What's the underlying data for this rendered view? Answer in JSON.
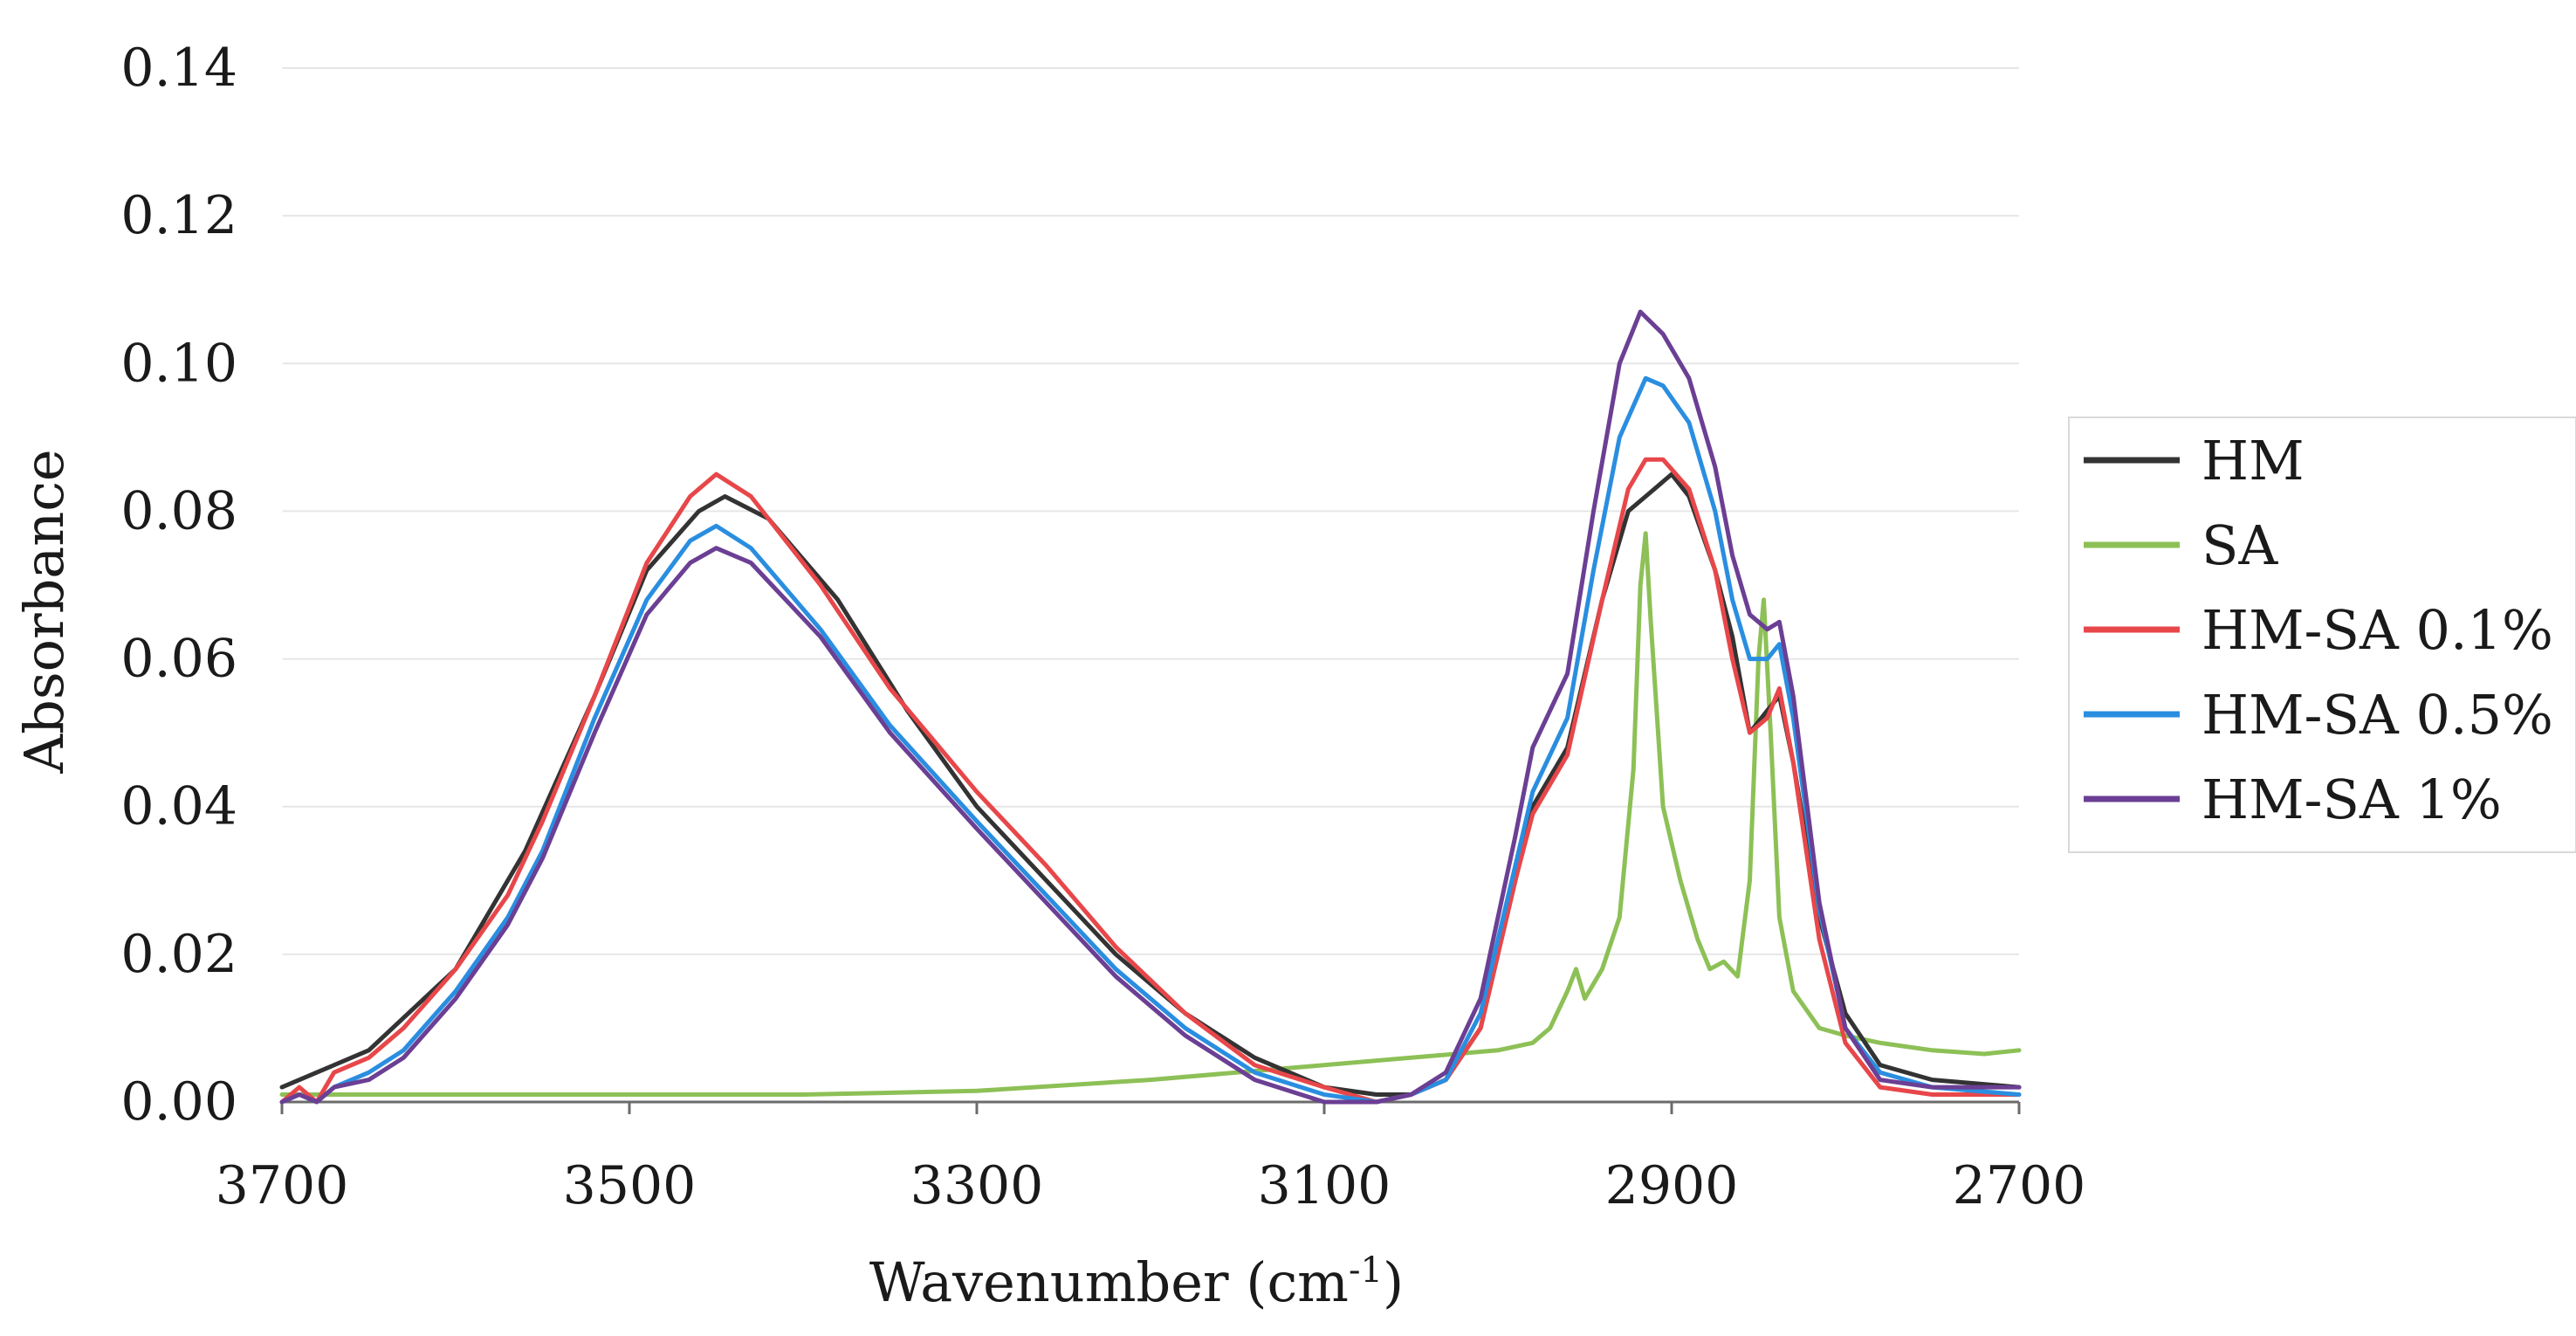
{
  "chart_data": {
    "type": "line",
    "title": "",
    "xlabel": "Wavenumber (cm",
    "xlabel_sup": "-1",
    "xlabel_close": ")",
    "ylabel": "Absorbance",
    "xlim": [
      3700,
      2700
    ],
    "ylim": [
      0,
      0.14
    ],
    "x_ticks": [
      3700,
      3500,
      3300,
      3100,
      2900,
      2700
    ],
    "y_ticks": [
      0.0,
      0.02,
      0.04,
      0.06,
      0.08,
      0.1,
      0.12,
      0.14
    ],
    "y_tick_labels": [
      "0.00",
      "0.02",
      "0.04",
      "0.06",
      "0.08",
      "0.10",
      "0.12",
      "0.14"
    ],
    "grid": true,
    "legend_position": "right",
    "series": [
      {
        "name": "HM",
        "color": "#333333",
        "points": [
          [
            3700,
            0.002
          ],
          [
            3680,
            0.004
          ],
          [
            3650,
            0.007
          ],
          [
            3600,
            0.018
          ],
          [
            3560,
            0.034
          ],
          [
            3520,
            0.055
          ],
          [
            3490,
            0.072
          ],
          [
            3460,
            0.08
          ],
          [
            3445,
            0.082
          ],
          [
            3420,
            0.079
          ],
          [
            3380,
            0.068
          ],
          [
            3340,
            0.053
          ],
          [
            3300,
            0.04
          ],
          [
            3260,
            0.03
          ],
          [
            3220,
            0.02
          ],
          [
            3180,
            0.012
          ],
          [
            3140,
            0.006
          ],
          [
            3100,
            0.002
          ],
          [
            3070,
            0.001
          ],
          [
            3050,
            0.001
          ],
          [
            3030,
            0.003
          ],
          [
            3010,
            0.01
          ],
          [
            2990,
            0.03
          ],
          [
            2980,
            0.04
          ],
          [
            2960,
            0.048
          ],
          [
            2940,
            0.068
          ],
          [
            2925,
            0.08
          ],
          [
            2910,
            0.083
          ],
          [
            2900,
            0.085
          ],
          [
            2890,
            0.082
          ],
          [
            2875,
            0.072
          ],
          [
            2865,
            0.063
          ],
          [
            2855,
            0.05
          ],
          [
            2845,
            0.053
          ],
          [
            2838,
            0.055
          ],
          [
            2830,
            0.046
          ],
          [
            2815,
            0.025
          ],
          [
            2800,
            0.012
          ],
          [
            2780,
            0.005
          ],
          [
            2750,
            0.003
          ],
          [
            2700,
            0.002
          ]
        ]
      },
      {
        "name": "SA",
        "color": "#8dc056",
        "points": [
          [
            3700,
            0.001
          ],
          [
            3600,
            0.001
          ],
          [
            3500,
            0.001
          ],
          [
            3400,
            0.001
          ],
          [
            3300,
            0.0015
          ],
          [
            3200,
            0.003
          ],
          [
            3100,
            0.005
          ],
          [
            3050,
            0.006
          ],
          [
            3000,
            0.007
          ],
          [
            2980,
            0.008
          ],
          [
            2970,
            0.01
          ],
          [
            2960,
            0.015
          ],
          [
            2955,
            0.018
          ],
          [
            2950,
            0.014
          ],
          [
            2940,
            0.018
          ],
          [
            2930,
            0.025
          ],
          [
            2922,
            0.045
          ],
          [
            2918,
            0.07
          ],
          [
            2915,
            0.077
          ],
          [
            2912,
            0.065
          ],
          [
            2905,
            0.04
          ],
          [
            2895,
            0.03
          ],
          [
            2885,
            0.022
          ],
          [
            2878,
            0.018
          ],
          [
            2870,
            0.019
          ],
          [
            2862,
            0.017
          ],
          [
            2855,
            0.03
          ],
          [
            2850,
            0.06
          ],
          [
            2847,
            0.068
          ],
          [
            2843,
            0.05
          ],
          [
            2838,
            0.025
          ],
          [
            2830,
            0.015
          ],
          [
            2815,
            0.01
          ],
          [
            2800,
            0.009
          ],
          [
            2780,
            0.008
          ],
          [
            2750,
            0.007
          ],
          [
            2720,
            0.0065
          ],
          [
            2700,
            0.007
          ]
        ]
      },
      {
        "name": "HM-SA 0.1%",
        "color": "#e8474a",
        "points": [
          [
            3700,
            0.0
          ],
          [
            3690,
            0.002
          ],
          [
            3680,
            0.0
          ],
          [
            3670,
            0.004
          ],
          [
            3650,
            0.006
          ],
          [
            3630,
            0.01
          ],
          [
            3600,
            0.018
          ],
          [
            3570,
            0.028
          ],
          [
            3550,
            0.038
          ],
          [
            3520,
            0.055
          ],
          [
            3490,
            0.073
          ],
          [
            3465,
            0.082
          ],
          [
            3450,
            0.085
          ],
          [
            3430,
            0.082
          ],
          [
            3390,
            0.07
          ],
          [
            3350,
            0.056
          ],
          [
            3300,
            0.042
          ],
          [
            3260,
            0.032
          ],
          [
            3220,
            0.021
          ],
          [
            3180,
            0.012
          ],
          [
            3140,
            0.005
          ],
          [
            3100,
            0.002
          ],
          [
            3070,
            0.0
          ],
          [
            3050,
            0.001
          ],
          [
            3030,
            0.003
          ],
          [
            3010,
            0.01
          ],
          [
            2990,
            0.03
          ],
          [
            2980,
            0.039
          ],
          [
            2960,
            0.047
          ],
          [
            2940,
            0.068
          ],
          [
            2925,
            0.083
          ],
          [
            2915,
            0.087
          ],
          [
            2905,
            0.087
          ],
          [
            2890,
            0.083
          ],
          [
            2875,
            0.072
          ],
          [
            2865,
            0.06
          ],
          [
            2855,
            0.05
          ],
          [
            2845,
            0.052
          ],
          [
            2838,
            0.056
          ],
          [
            2830,
            0.046
          ],
          [
            2815,
            0.022
          ],
          [
            2800,
            0.008
          ],
          [
            2780,
            0.002
          ],
          [
            2750,
            0.001
          ],
          [
            2700,
            0.001
          ]
        ]
      },
      {
        "name": "HM-SA 0.5%",
        "color": "#2a8ee0",
        "points": [
          [
            3700,
            0.0
          ],
          [
            3690,
            0.001
          ],
          [
            3680,
            0.0
          ],
          [
            3670,
            0.002
          ],
          [
            3650,
            0.004
          ],
          [
            3630,
            0.007
          ],
          [
            3600,
            0.015
          ],
          [
            3570,
            0.025
          ],
          [
            3550,
            0.034
          ],
          [
            3520,
            0.052
          ],
          [
            3490,
            0.068
          ],
          [
            3465,
            0.076
          ],
          [
            3450,
            0.078
          ],
          [
            3430,
            0.075
          ],
          [
            3390,
            0.064
          ],
          [
            3350,
            0.051
          ],
          [
            3300,
            0.038
          ],
          [
            3260,
            0.028
          ],
          [
            3220,
            0.018
          ],
          [
            3180,
            0.01
          ],
          [
            3140,
            0.004
          ],
          [
            3100,
            0.001
          ],
          [
            3070,
            0.0
          ],
          [
            3050,
            0.001
          ],
          [
            3030,
            0.003
          ],
          [
            3010,
            0.012
          ],
          [
            2990,
            0.032
          ],
          [
            2980,
            0.042
          ],
          [
            2960,
            0.052
          ],
          [
            2945,
            0.072
          ],
          [
            2930,
            0.09
          ],
          [
            2915,
            0.098
          ],
          [
            2905,
            0.097
          ],
          [
            2890,
            0.092
          ],
          [
            2875,
            0.08
          ],
          [
            2865,
            0.068
          ],
          [
            2855,
            0.06
          ],
          [
            2845,
            0.06
          ],
          [
            2838,
            0.062
          ],
          [
            2830,
            0.052
          ],
          [
            2815,
            0.026
          ],
          [
            2800,
            0.01
          ],
          [
            2780,
            0.004
          ],
          [
            2750,
            0.002
          ],
          [
            2700,
            0.001
          ]
        ]
      },
      {
        "name": "HM-SA 1%",
        "color": "#6b3f94",
        "points": [
          [
            3700,
            0.0
          ],
          [
            3690,
            0.001
          ],
          [
            3680,
            0.0
          ],
          [
            3670,
            0.002
          ],
          [
            3650,
            0.003
          ],
          [
            3630,
            0.006
          ],
          [
            3600,
            0.014
          ],
          [
            3570,
            0.024
          ],
          [
            3550,
            0.033
          ],
          [
            3520,
            0.05
          ],
          [
            3490,
            0.066
          ],
          [
            3465,
            0.073
          ],
          [
            3450,
            0.075
          ],
          [
            3430,
            0.073
          ],
          [
            3390,
            0.063
          ],
          [
            3350,
            0.05
          ],
          [
            3300,
            0.037
          ],
          [
            3260,
            0.027
          ],
          [
            3220,
            0.017
          ],
          [
            3180,
            0.009
          ],
          [
            3140,
            0.003
          ],
          [
            3100,
            0.0
          ],
          [
            3070,
            0.0
          ],
          [
            3050,
            0.001
          ],
          [
            3030,
            0.004
          ],
          [
            3010,
            0.014
          ],
          [
            2990,
            0.036
          ],
          [
            2980,
            0.048
          ],
          [
            2960,
            0.058
          ],
          [
            2945,
            0.08
          ],
          [
            2930,
            0.1
          ],
          [
            2918,
            0.107
          ],
          [
            2905,
            0.104
          ],
          [
            2890,
            0.098
          ],
          [
            2875,
            0.086
          ],
          [
            2865,
            0.074
          ],
          [
            2855,
            0.066
          ],
          [
            2845,
            0.064
          ],
          [
            2838,
            0.065
          ],
          [
            2830,
            0.055
          ],
          [
            2815,
            0.027
          ],
          [
            2800,
            0.01
          ],
          [
            2780,
            0.003
          ],
          [
            2750,
            0.002
          ],
          [
            2700,
            0.002
          ]
        ]
      }
    ]
  }
}
